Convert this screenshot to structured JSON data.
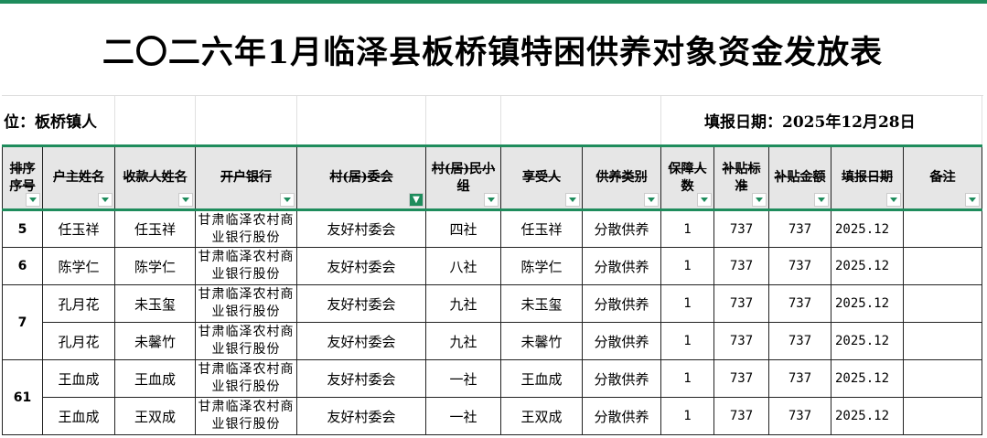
{
  "title": "二〇二六年1月临泽县板桥镇特困供养对象资金发放表",
  "unit_label": "位：板桥镇人",
  "fill_date": "填报日期：2025年12月28日",
  "accent": "#1e8c5c",
  "headers": [
    "排序序号",
    "户主姓名",
    "收款人姓名",
    "开户银行",
    "村(居)委会",
    "村(居)民小组",
    "享受人",
    "供养类别",
    "保障人数",
    "补贴标准",
    "补贴金额",
    "填报日期",
    "备注"
  ],
  "filtered_column": "村(居)委会",
  "groups": [
    {
      "seq": "5",
      "rows": [
        {
          "head": "任玉祥",
          "payee": "任玉祥",
          "bank": "甘肃临泽农村商业银行股份",
          "committee": "友好村委会",
          "group": "四社",
          "beneficiary": "任玉祥",
          "category": "分散供养",
          "count": "1",
          "standard": "737",
          "amount": "737",
          "date": "2025.12",
          "note": ""
        }
      ]
    },
    {
      "seq": "6",
      "rows": [
        {
          "head": "陈学仁",
          "payee": "陈学仁",
          "bank": "甘肃临泽农村商业银行股份",
          "committee": "友好村委会",
          "group": "八社",
          "beneficiary": "陈学仁",
          "category": "分散供养",
          "count": "1",
          "standard": "737",
          "amount": "737",
          "date": "2025.12",
          "note": ""
        }
      ]
    },
    {
      "seq": "7",
      "rows": [
        {
          "head": "孔月花",
          "payee": "未玉玺",
          "bank": "甘肃临泽农村商业银行股份",
          "committee": "友好村委会",
          "group": "九社",
          "beneficiary": "未玉玺",
          "category": "分散供养",
          "count": "1",
          "standard": "737",
          "amount": "737",
          "date": "2025.12",
          "note": ""
        },
        {
          "head": "孔月花",
          "payee": "未馨竹",
          "bank": "甘肃临泽农村商业银行股份",
          "committee": "友好村委会",
          "group": "九社",
          "beneficiary": "未馨竹",
          "category": "分散供养",
          "count": "1",
          "standard": "737",
          "amount": "737",
          "date": "2025.12",
          "note": ""
        }
      ]
    },
    {
      "seq": "61",
      "rows": [
        {
          "head": "王血成",
          "payee": "王血成",
          "bank": "甘肃临泽农村商业银行股份",
          "committee": "友好村委会",
          "group": "一社",
          "beneficiary": "王血成",
          "category": "分散供养",
          "count": "1",
          "standard": "737",
          "amount": "737",
          "date": "2025.12",
          "note": ""
        },
        {
          "head": "王血成",
          "payee": "王双成",
          "bank": "甘肃临泽农村商业银行股份",
          "committee": "友好村委会",
          "group": "一社",
          "beneficiary": "王双成",
          "category": "分散供养",
          "count": "1",
          "standard": "737",
          "amount": "737",
          "date": "2025.12",
          "note": ""
        }
      ]
    }
  ]
}
